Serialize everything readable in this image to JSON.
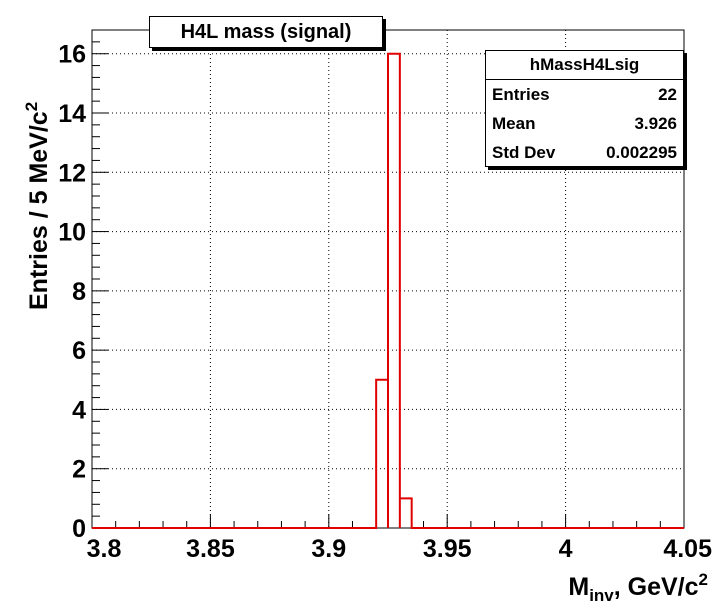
{
  "chart_data": {
    "type": "bar",
    "title": "H4L mass (signal)",
    "xlabel": "M",
    "xlabel_sub": "inv",
    "xlabel_rest": ", GeV/c",
    "xlabel_sup": "2",
    "ylabel": "Entries / 5 MeV/c",
    "ylabel_sup": "2",
    "xlim": [
      3.8,
      4.05
    ],
    "ylim": [
      0,
      16.8
    ],
    "x_ticks": [
      "3.8",
      "3.85",
      "3.9",
      "3.95",
      "4",
      "4.05"
    ],
    "x_tick_values": [
      3.8,
      3.85,
      3.9,
      3.95,
      4.0,
      4.05
    ],
    "y_ticks": [
      "0",
      "2",
      "4",
      "6",
      "8",
      "10",
      "12",
      "14",
      "16"
    ],
    "y_tick_values": [
      0,
      2,
      4,
      6,
      8,
      10,
      12,
      14,
      16
    ],
    "grid": true,
    "bins": [
      {
        "x0": 3.92,
        "x1": 3.925,
        "value": 5
      },
      {
        "x0": 3.925,
        "x1": 3.93,
        "value": 16
      },
      {
        "x0": 3.93,
        "x1": 3.935,
        "value": 1
      }
    ],
    "series_color": "#e00000",
    "stats": {
      "name": "hMassH4Lsig",
      "rows": [
        {
          "label": "Entries",
          "value": "22"
        },
        {
          "label": "Mean",
          "value": "3.926"
        },
        {
          "label": "Std Dev",
          "value": "0.002295"
        }
      ]
    }
  }
}
